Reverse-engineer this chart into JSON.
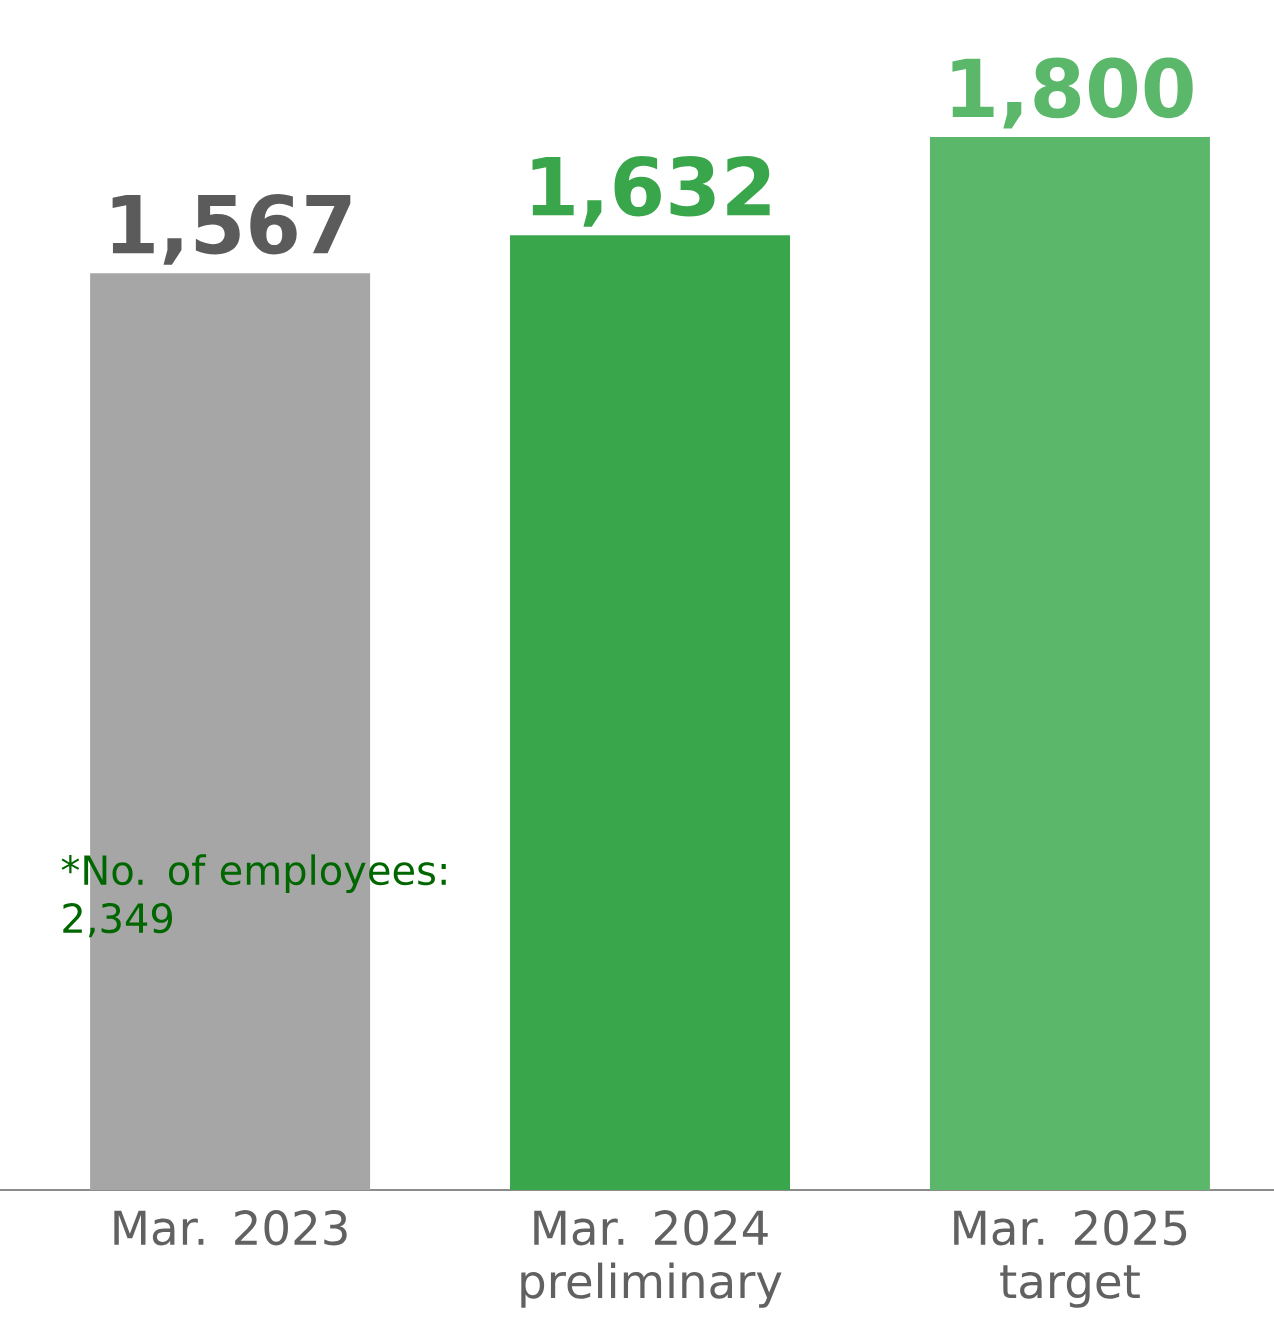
{
  "chart_data": {
    "type": "bar",
    "categories": [
      "Mar. 2023",
      "Mar. 2024 preliminary",
      "Mar. 2025 target"
    ],
    "values": [
      1567,
      1632,
      1800
    ],
    "colors": [
      "#a6a6a6",
      "#3aa64c",
      "#5bb86a"
    ],
    "value_labels": [
      "1,567",
      "1,632",
      "1,800"
    ],
    "annotations": [
      "*No. of employees: 2,349"
    ]
  }
}
